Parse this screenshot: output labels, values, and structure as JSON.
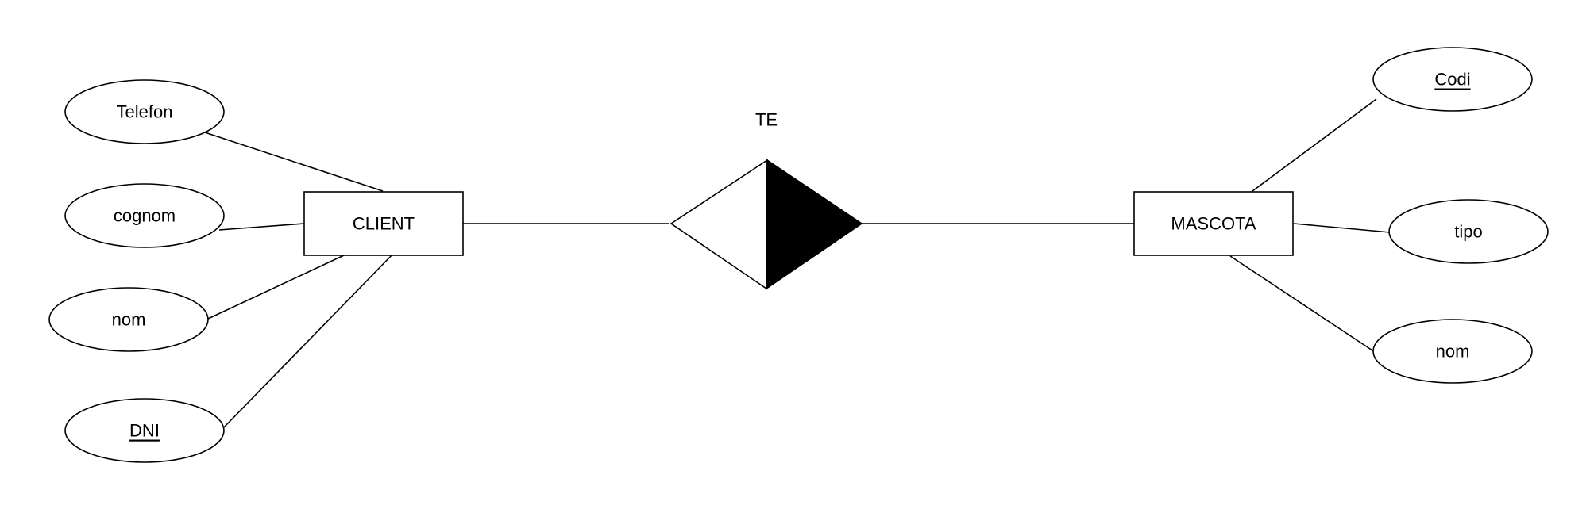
{
  "entities": [
    {
      "id": "client",
      "label": "CLIENT"
    },
    {
      "id": "mascota",
      "label": "MASCOTA"
    }
  ],
  "relationship": {
    "label": "TE"
  },
  "attributes": {
    "client": [
      {
        "label": "Telefon",
        "key": false
      },
      {
        "label": "cognom",
        "key": false
      },
      {
        "label": "nom",
        "key": false
      },
      {
        "label": "DNI",
        "key": true
      }
    ],
    "mascota": [
      {
        "label": "Codi",
        "key": true
      },
      {
        "label": "tipo",
        "key": false
      },
      {
        "label": "nom",
        "key": false
      }
    ]
  },
  "colors": {
    "stroke": "#000000",
    "fill": "#ffffff",
    "weak_half": "#000000"
  }
}
